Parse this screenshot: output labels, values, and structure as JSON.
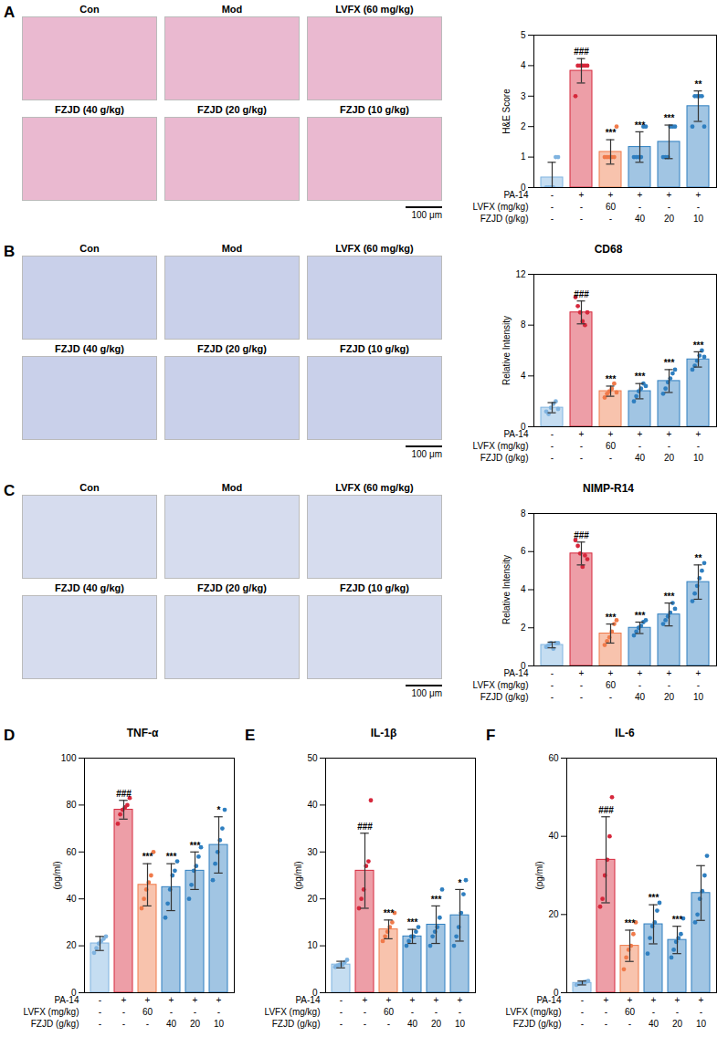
{
  "chart_data": [
    {
      "panel": "A",
      "type": "bar",
      "y_label": "H&E Score",
      "categories": [
        null,
        null,
        null,
        null,
        null,
        null
      ],
      "values": [
        0.33,
        3.83,
        1.17,
        1.33,
        1.5,
        2.67
      ],
      "errors": [
        0.5,
        0.4,
        0.4,
        0.5,
        0.55,
        0.5
      ],
      "points": [
        [
          0,
          0,
          0,
          0,
          1,
          1
        ],
        [
          3,
          4,
          4,
          4,
          4,
          4
        ],
        [
          1,
          1,
          1,
          1,
          1,
          2
        ],
        [
          1,
          1,
          1,
          1,
          2,
          2
        ],
        [
          1,
          1,
          1,
          2,
          2,
          2
        ],
        [
          2,
          3,
          3,
          3,
          3,
          2
        ]
      ],
      "annotations": [
        null,
        "###",
        "***",
        "***",
        "***",
        "**"
      ],
      "colors": [
        "#7fb3e0",
        "#d6283c",
        "#f07a4a",
        "#2f7fc0",
        "#2f7fc0",
        "#2f7fc0"
      ],
      "ylim": [
        0,
        5
      ],
      "yticks": [
        0,
        1,
        2,
        3,
        4,
        5
      ],
      "treatment_rows": [
        {
          "name": "PA-14",
          "labels": [
            "-",
            "+",
            "+",
            "+",
            "+",
            "+"
          ]
        },
        {
          "name": "LVFX (mg/kg)",
          "labels": [
            "-",
            "-",
            "60",
            "-",
            "-",
            "-"
          ]
        },
        {
          "name": "FZJD (g/kg)",
          "labels": [
            "-",
            "-",
            "-",
            "40",
            "20",
            "10"
          ]
        }
      ]
    },
    {
      "panel": "B",
      "type": "bar",
      "title": "CD68",
      "y_label": "Relative Intensity",
      "categories": [
        null,
        null,
        null,
        null,
        null,
        null
      ],
      "values": [
        1.5,
        9.0,
        2.8,
        2.8,
        3.6,
        5.3
      ],
      "errors": [
        0.4,
        0.9,
        0.4,
        0.6,
        0.9,
        0.6
      ],
      "points": [
        [
          1.2,
          1.0,
          1.5,
          1.8,
          2.0,
          1.4
        ],
        [
          10.2,
          9.5,
          9.0,
          8.3,
          8.0,
          9.0
        ],
        [
          2.3,
          2.6,
          2.8,
          3.0,
          3.4,
          2.7
        ],
        [
          2.0,
          2.4,
          2.8,
          3.0,
          3.4,
          3.2
        ],
        [
          2.6,
          3.0,
          3.5,
          3.8,
          4.2,
          4.5
        ],
        [
          4.5,
          4.8,
          5.2,
          5.6,
          6.0,
          5.5
        ]
      ],
      "annotations": [
        null,
        "###",
        "***",
        "***",
        "***",
        "***"
      ],
      "colors": [
        "#7fb3e0",
        "#d6283c",
        "#f07a4a",
        "#2f7fc0",
        "#2f7fc0",
        "#2f7fc0"
      ],
      "ylim": [
        0,
        12
      ],
      "yticks": [
        0,
        4,
        8,
        12
      ],
      "treatment_rows": [
        {
          "name": "PA-14",
          "labels": [
            "-",
            "+",
            "+",
            "+",
            "+",
            "+"
          ]
        },
        {
          "name": "LVFX (mg/kg)",
          "labels": [
            "-",
            "-",
            "60",
            "-",
            "-",
            "-"
          ]
        },
        {
          "name": "FZJD (g/kg)",
          "labels": [
            "-",
            "-",
            "-",
            "40",
            "20",
            "10"
          ]
        }
      ]
    },
    {
      "panel": "C",
      "type": "bar",
      "title": "NIMP-R14",
      "y_label": "Relative Intensity",
      "categories": [
        null,
        null,
        null,
        null,
        null,
        null
      ],
      "values": [
        1.1,
        5.9,
        1.7,
        2.0,
        2.7,
        4.4
      ],
      "errors": [
        0.15,
        0.6,
        0.5,
        0.3,
        0.6,
        0.9
      ],
      "points": [
        [
          1.0,
          1.1,
          1.2,
          0.9,
          1.2,
          1.2
        ],
        [
          6.6,
          6.3,
          5.9,
          5.2,
          5.8,
          5.6
        ],
        [
          1.1,
          1.3,
          1.5,
          1.8,
          2.2,
          2.4
        ],
        [
          1.6,
          1.8,
          2.0,
          2.1,
          2.3,
          2.4
        ],
        [
          2.2,
          2.4,
          2.6,
          2.8,
          3.3,
          3.0
        ],
        [
          3.4,
          3.8,
          4.2,
          4.6,
          5.0,
          5.4
        ]
      ],
      "annotations": [
        null,
        "###",
        "***",
        "***",
        "***",
        "**"
      ],
      "colors": [
        "#7fb3e0",
        "#d6283c",
        "#f07a4a",
        "#2f7fc0",
        "#2f7fc0",
        "#2f7fc0"
      ],
      "ylim": [
        0,
        8
      ],
      "yticks": [
        0,
        2,
        4,
        6,
        8
      ],
      "treatment_rows": [
        {
          "name": "PA-14",
          "labels": [
            "-",
            "+",
            "+",
            "+",
            "+",
            "+"
          ]
        },
        {
          "name": "LVFX (mg/kg)",
          "labels": [
            "-",
            "-",
            "60",
            "-",
            "-",
            "-"
          ]
        },
        {
          "name": "FZJD (g/kg)",
          "labels": [
            "-",
            "-",
            "-",
            "40",
            "20",
            "10"
          ]
        }
      ]
    },
    {
      "panel": "D",
      "type": "bar",
      "title": "TNF-α",
      "y_label": "(pg/ml)",
      "categories": [
        null,
        null,
        null,
        null,
        null,
        null
      ],
      "values": [
        21,
        78,
        46,
        45,
        52,
        63
      ],
      "errors": [
        3,
        4,
        9,
        10,
        8,
        12
      ],
      "points": [
        [
          17,
          19,
          21,
          22,
          23,
          24
        ],
        [
          72,
          76,
          78,
          79,
          80,
          83
        ],
        [
          36,
          40,
          44,
          47,
          50,
          60
        ],
        [
          32,
          38,
          44,
          50,
          52,
          56
        ],
        [
          40,
          46,
          52,
          54,
          58,
          62
        ],
        [
          48,
          55,
          60,
          65,
          70,
          78
        ]
      ],
      "annotations": [
        null,
        "###",
        "***",
        "***",
        "***",
        "*"
      ],
      "colors": [
        "#7fb3e0",
        "#d6283c",
        "#f07a4a",
        "#2f7fc0",
        "#2f7fc0",
        "#2f7fc0"
      ],
      "ylim": [
        0,
        100
      ],
      "yticks": [
        0,
        20,
        40,
        60,
        80,
        100
      ],
      "treatment_rows": [
        {
          "name": "PA-14",
          "labels": [
            "-",
            "+",
            "+",
            "+",
            "+",
            "+"
          ]
        },
        {
          "name": "LVFX (mg/kg)",
          "labels": [
            "-",
            "-",
            "60",
            "-",
            "-",
            "-"
          ]
        },
        {
          "name": "FZJD (g/kg)",
          "labels": [
            "-",
            "-",
            "-",
            "40",
            "20",
            "10"
          ]
        }
      ]
    },
    {
      "panel": "E",
      "type": "bar",
      "title": "IL-1β",
      "y_label": "(pg/ml)",
      "categories": [
        null,
        null,
        null,
        null,
        null,
        null
      ],
      "values": [
        6,
        26,
        13.5,
        12,
        14.5,
        16.5
      ],
      "errors": [
        0.7,
        8,
        2,
        1.5,
        4,
        5.5
      ],
      "points": [
        [
          5.5,
          5.8,
          6,
          6,
          6.5,
          7
        ],
        [
          18,
          20,
          22,
          27,
          28,
          41
        ],
        [
          11,
          12,
          13,
          14,
          15,
          17
        ],
        [
          10,
          11,
          12,
          12,
          13,
          14
        ],
        [
          10,
          12,
          13,
          14,
          16,
          22
        ],
        [
          10,
          12,
          14,
          17,
          21,
          24
        ]
      ],
      "annotations": [
        null,
        "###",
        "***",
        "***",
        "***",
        "*"
      ],
      "colors": [
        "#7fb3e0",
        "#d6283c",
        "#f07a4a",
        "#2f7fc0",
        "#2f7fc0",
        "#2f7fc0"
      ],
      "ylim": [
        0,
        50
      ],
      "yticks": [
        0,
        10,
        20,
        30,
        40,
        50
      ],
      "treatment_rows": [
        {
          "name": "PA-14",
          "labels": [
            "-",
            "+",
            "+",
            "+",
            "+",
            "+"
          ]
        },
        {
          "name": "LVFX (mg/kg)",
          "labels": [
            "-",
            "-",
            "60",
            "-",
            "-",
            "-"
          ]
        },
        {
          "name": "FZJD (g/kg)",
          "labels": [
            "-",
            "-",
            "-",
            "40",
            "20",
            "10"
          ]
        }
      ]
    },
    {
      "panel": "F",
      "type": "bar",
      "title": "IL-6",
      "y_label": "(pg/ml)",
      "categories": [
        null,
        null,
        null,
        null,
        null,
        null
      ],
      "values": [
        2.5,
        34,
        12,
        17.5,
        13.5,
        25.5
      ],
      "errors": [
        0.5,
        11,
        4,
        5,
        3.5,
        7
      ],
      "points": [
        [
          2,
          2.3,
          2.5,
          2.7,
          2.8,
          3
        ],
        [
          22,
          24,
          30,
          34,
          40,
          50
        ],
        [
          6,
          9,
          11,
          12,
          15,
          18
        ],
        [
          10,
          14,
          17,
          18,
          21,
          23
        ],
        [
          9,
          11,
          13,
          14,
          15,
          19
        ],
        [
          18,
          20,
          24,
          26,
          30,
          35
        ]
      ],
      "annotations": [
        null,
        "###",
        "***",
        "***",
        "***",
        null
      ],
      "colors": [
        "#7fb3e0",
        "#d6283c",
        "#f07a4a",
        "#2f7fc0",
        "#2f7fc0",
        "#2f7fc0"
      ],
      "ylim": [
        0,
        60
      ],
      "yticks": [
        0,
        20,
        40,
        60
      ],
      "treatment_rows": [
        {
          "name": "PA-14",
          "labels": [
            "-",
            "+",
            "+",
            "+",
            "+",
            "+"
          ]
        },
        {
          "name": "LVFX (mg/kg)",
          "labels": [
            "-",
            "-",
            "60",
            "-",
            "-",
            "-"
          ]
        },
        {
          "name": "FZJD (g/kg)",
          "labels": [
            "-",
            "-",
            "-",
            "40",
            "20",
            "10"
          ]
        }
      ]
    }
  ],
  "micrographs": [
    {
      "panel": "A",
      "labels": [
        "Con",
        "Mod",
        "LVFX (60 mg/kg)",
        "FZJD (40 g/kg)",
        "FZJD (20 g/kg)",
        "FZJD (10 g/kg)"
      ],
      "scale_bar": "100 μm",
      "color": "#eab9d0"
    },
    {
      "panel": "B",
      "labels": [
        "Con",
        "Mod",
        "LVFX (60 mg/kg)",
        "FZJD (40 g/kg)",
        "FZJD (20 g/kg)",
        "FZJD (10 g/kg)"
      ],
      "scale_bar": "100 μm",
      "color": "#c9d0ea"
    },
    {
      "panel": "C",
      "labels": [
        "Con",
        "Mod",
        "LVFX (60 mg/kg)",
        "FZJD (40 g/kg)",
        "FZJD (20 g/kg)",
        "FZJD (10 g/kg)"
      ],
      "scale_bar": "100 μm",
      "color": "#d6dcee"
    }
  ]
}
